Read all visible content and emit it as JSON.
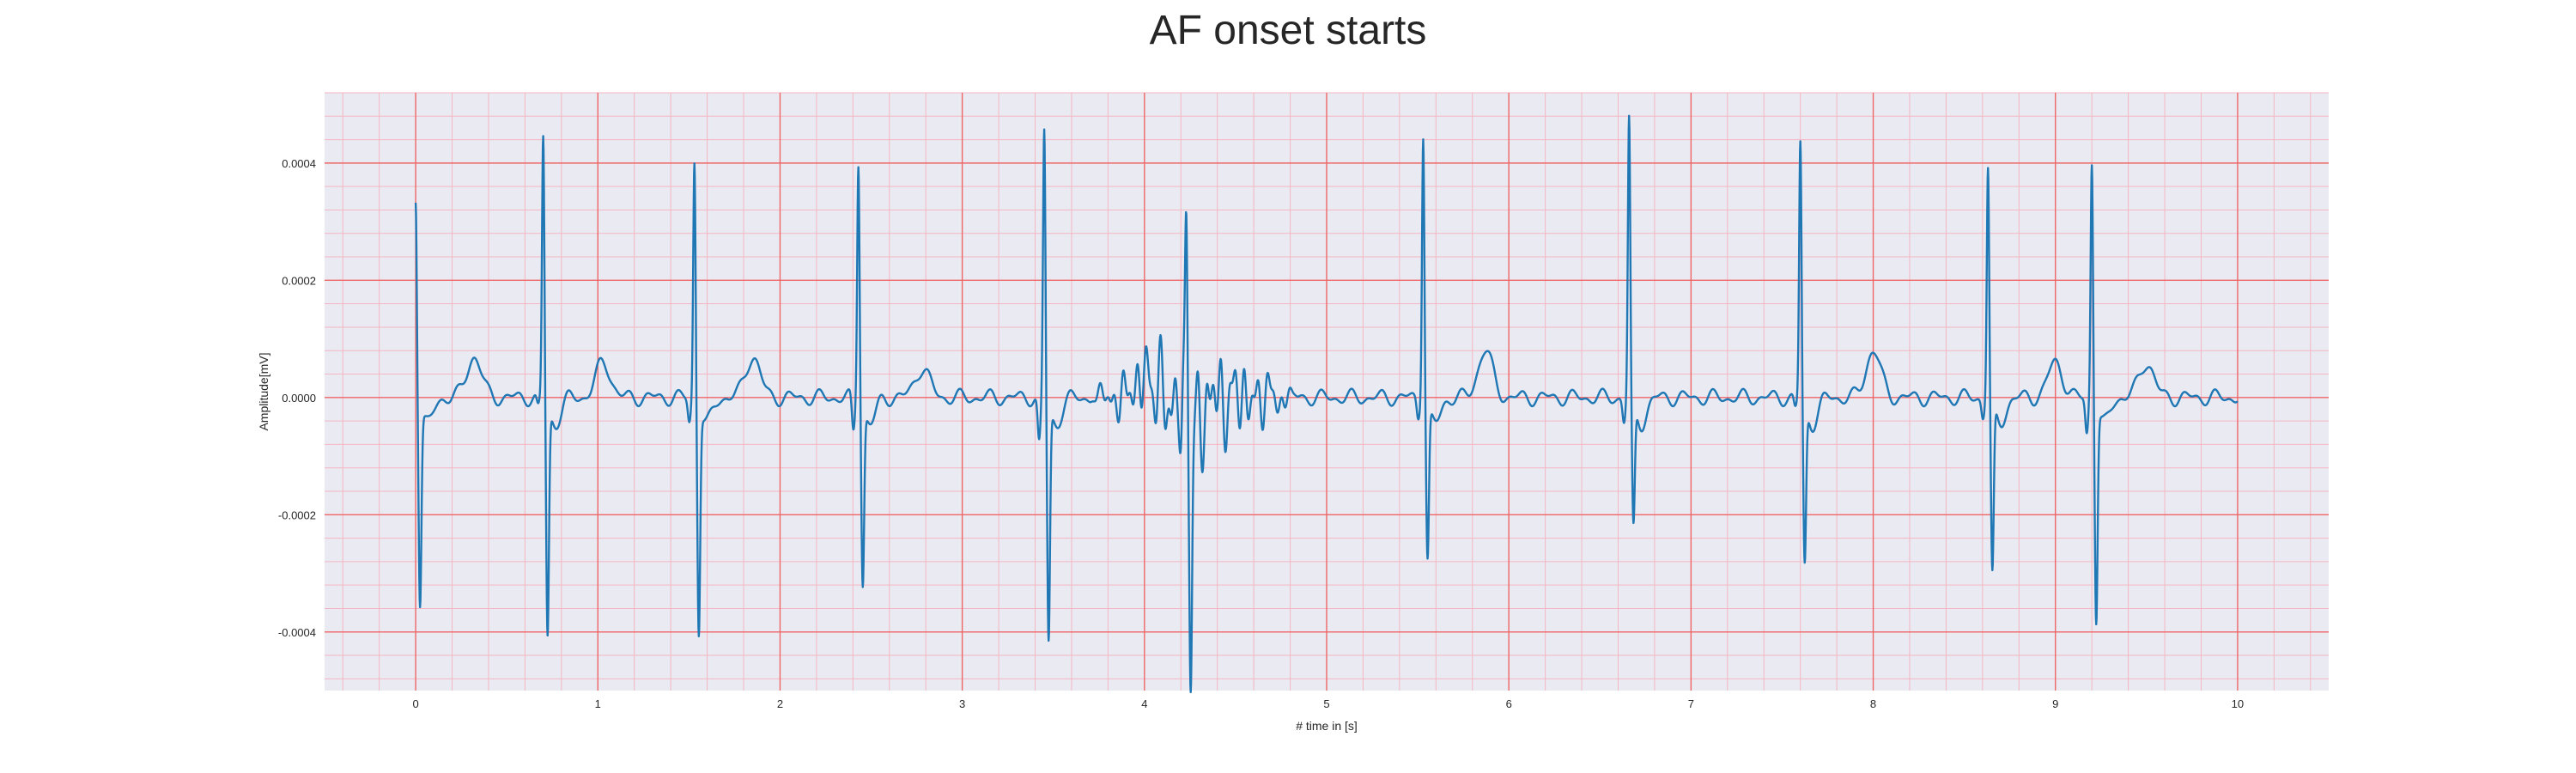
{
  "chart_data": {
    "type": "line",
    "title": "AF onset starts",
    "xlabel": "# time in [s]",
    "ylabel": "Amplitude[mV]",
    "xlim": [
      -0.5,
      10.5
    ],
    "ylim": [
      -0.0005,
      0.00052
    ],
    "xticks": [
      0,
      1,
      2,
      3,
      4,
      5,
      6,
      7,
      8,
      9,
      10
    ],
    "yticks": [
      -0.0004,
      -0.0002,
      0.0,
      0.0002,
      0.0004
    ],
    "ytick_labels": [
      "-0.0004",
      "-0.0002",
      "0.0000",
      "0.0002",
      "0.0004"
    ],
    "grid": true,
    "legend": "none",
    "colors": {
      "line": "#1f77b4",
      "plot_background": "#eaeaf2",
      "major_grid": "#ee6666",
      "minor_grid": "#f4b6c2"
    },
    "series": [
      {
        "sample_interval_s": 0.01,
        "beats": [
          {
            "t": 0.0,
            "q": 0.0,
            "r": 0.00035,
            "s": -0.00033
          },
          {
            "t": 0.7,
            "q": -2e-05,
            "r": 0.00045,
            "s": -0.00039
          },
          {
            "t": 1.53,
            "q": -4e-05,
            "r": 0.00041,
            "s": -0.00038
          },
          {
            "t": 2.43,
            "q": -6e-05,
            "r": 0.00041,
            "s": -0.0003
          },
          {
            "t": 3.45,
            "q": -8e-05,
            "r": 0.00046,
            "s": -0.0004
          },
          {
            "t": 4.23,
            "q": -0.0001,
            "r": 0.00034,
            "s": -0.00045
          },
          {
            "t": 5.53,
            "q": -3e-05,
            "r": 0.00046,
            "s": -0.00026
          },
          {
            "t": 6.66,
            "q": -4e-05,
            "r": 0.00048,
            "s": -0.00021
          },
          {
            "t": 7.6,
            "q": -2e-05,
            "r": 0.00044,
            "s": -0.00027
          },
          {
            "t": 8.63,
            "q": -3e-05,
            "r": 0.0004,
            "s": -0.00029
          },
          {
            "t": 9.2,
            "q": -6e-05,
            "r": 0.00041,
            "s": -0.00036
          }
        ],
        "t_waves": [
          {
            "t": 0.32,
            "amp": 7e-05
          },
          {
            "t": 1.03,
            "amp": 6e-05
          },
          {
            "t": 1.85,
            "amp": 7e-05
          },
          {
            "t": 2.78,
            "amp": 5e-05
          },
          {
            "t": 4.0,
            "amp": 4e-05
          },
          {
            "t": 5.87,
            "amp": 8e-05
          },
          {
            "t": 8.0,
            "amp": 8e-05
          },
          {
            "t": 9.0,
            "amp": 6e-05
          },
          {
            "t": 9.5,
            "amp": 6e-05
          }
        ],
        "baseline_noise": 1.5e-05,
        "af_irregular_activity": {
          "t_start": 3.7,
          "t_end": 4.85,
          "amp": 7e-05
        },
        "end_time_s": 10.0
      }
    ]
  }
}
